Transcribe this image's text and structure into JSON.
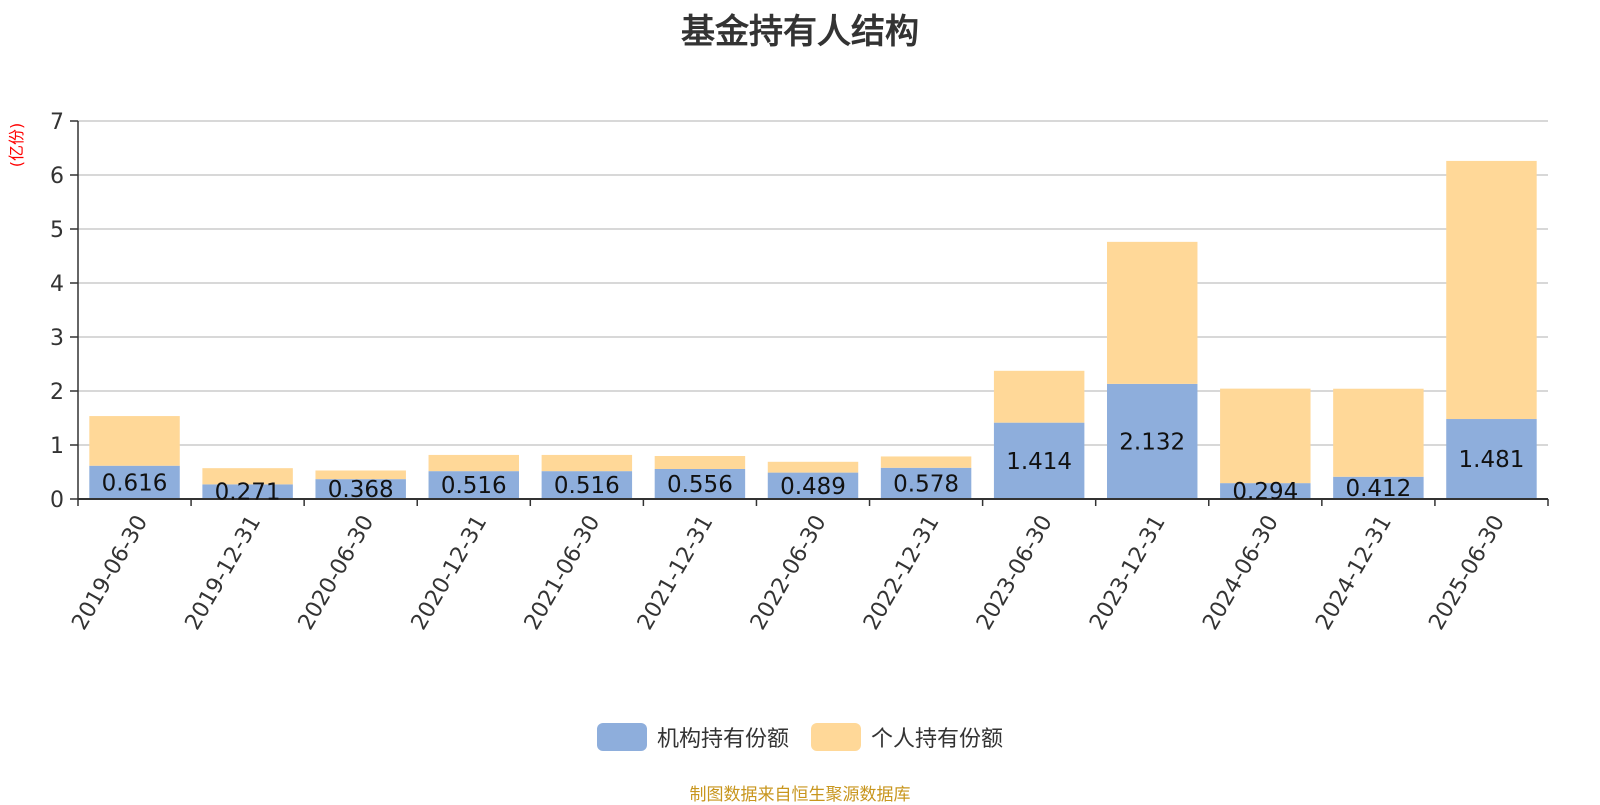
{
  "chart_data": {
    "type": "bar",
    "stacked": true,
    "title": "基金持有人结构",
    "ylabel": "(亿份)",
    "ylim": [
      0,
      7
    ],
    "yticks": [
      0,
      1,
      2,
      3,
      4,
      5,
      6,
      7
    ],
    "grid": true,
    "legend_position": "bottom",
    "categories": [
      "2019-06-30",
      "2019-12-31",
      "2020-06-30",
      "2020-12-31",
      "2021-06-30",
      "2021-12-31",
      "2022-06-30",
      "2022-12-31",
      "2023-06-30",
      "2023-12-31",
      "2024-06-30",
      "2024-12-31",
      "2025-06-30"
    ],
    "series": [
      {
        "name": "机构持有份额",
        "color": "#8eaedc",
        "values": [
          0.616,
          0.271,
          0.368,
          0.516,
          0.516,
          0.556,
          0.489,
          0.578,
          1.414,
          2.132,
          0.294,
          0.412,
          1.481
        ],
        "labels": [
          "0.616",
          "0.271",
          "0.368",
          "0.516",
          "0.516",
          "0.556",
          "0.489",
          "0.578",
          "1.414",
          "2.132",
          "0.294",
          "0.412",
          "1.481"
        ]
      },
      {
        "name": "个人持有份额",
        "color": "#ffd898",
        "values": [
          0.92,
          0.3,
          0.16,
          0.3,
          0.3,
          0.24,
          0.2,
          0.21,
          0.96,
          2.63,
          1.75,
          1.63,
          4.78
        ]
      }
    ]
  },
  "footer": {
    "source": "制图数据来自恒生聚源数据库"
  },
  "colors": {
    "axis": "#333333",
    "grid": "#cccccc",
    "ylabel": "#ff0000",
    "source": "#c8961e"
  }
}
